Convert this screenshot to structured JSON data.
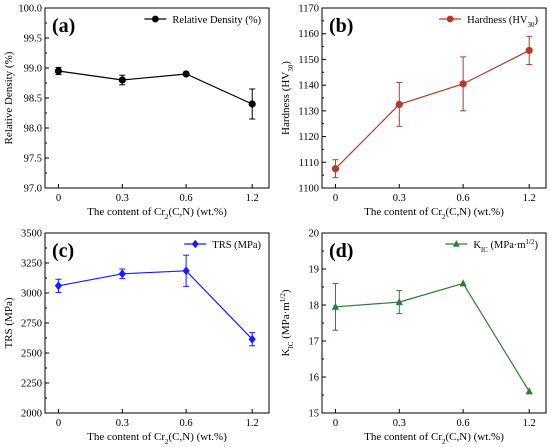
{
  "chart_data": [
    {
      "type": "line",
      "panel_label": "(a)",
      "categories": [
        "0",
        "0.3",
        "0.6",
        "1.2"
      ],
      "x": [
        0,
        0.3,
        0.6,
        1.2
      ],
      "xlabel": {
        "pre": "The content of Cr",
        "sub": "2",
        "post": "(C,N) (wt.%)"
      },
      "ylabel": {
        "pre": "Relative Density (%)",
        "sub": "",
        "post": ""
      },
      "ylim": [
        97.0,
        100.0
      ],
      "yticks": [
        "97.0",
        "97.5",
        "98.0",
        "98.5",
        "99.0",
        "99.5",
        "100.0"
      ],
      "marker": "circle",
      "color": "#000000",
      "legend_position": "top-right",
      "series": [
        {
          "name": {
            "pre": "Relative Density (%)",
            "sub": "",
            "post": ""
          },
          "values": [
            98.95,
            98.8,
            98.9,
            98.4
          ],
          "errors": [
            0.06,
            0.08,
            0.0,
            0.25
          ]
        }
      ],
      "grid": false
    },
    {
      "type": "line",
      "panel_label": "(b)",
      "categories": [
        "0",
        "0.3",
        "0.6",
        "1.2"
      ],
      "x": [
        0,
        0.3,
        0.6,
        1.2
      ],
      "xlabel": {
        "pre": "The content of Cr",
        "sub": "2",
        "post": "(C,N) (wt.%)"
      },
      "ylabel": {
        "pre": "Hardness (HV",
        "sub": "30",
        "post": ")"
      },
      "ylim": [
        1100,
        1170
      ],
      "yticks": [
        "1100",
        "1110",
        "1120",
        "1130",
        "1140",
        "1150",
        "1160",
        "1170"
      ],
      "marker": "circle",
      "color": "#b03a2e",
      "legend_position": "top-right",
      "series": [
        {
          "name": {
            "pre": "Hardness (HV",
            "sub": "30",
            "post": ")"
          },
          "values": [
            1107.5,
            1132.5,
            1140.5,
            1153.5
          ],
          "errors": [
            3.5,
            8.5,
            10.5,
            5.5
          ]
        }
      ],
      "grid": false
    },
    {
      "type": "line",
      "panel_label": "(c)",
      "categories": [
        "0",
        "0.3",
        "0.6",
        "1.2"
      ],
      "x": [
        0,
        0.3,
        0.6,
        1.2
      ],
      "xlabel": {
        "pre": "The content of Cr",
        "sub": "2",
        "post": "(C,N) (wt.%)"
      },
      "ylabel": {
        "pre": "TRS (MPa)",
        "sub": "",
        "post": ""
      },
      "ylim": [
        2000,
        3500
      ],
      "yticks": [
        "2000",
        "2250",
        "2500",
        "2750",
        "3000",
        "3250",
        "3500"
      ],
      "marker": "diamond",
      "color": "#1a1aff",
      "legend_position": "top-right",
      "series": [
        {
          "name": {
            "pre": "TRS (MPa)",
            "sub": "",
            "post": ""
          },
          "values": [
            3060,
            3160,
            3185,
            2615
          ],
          "errors": [
            55,
            40,
            130,
            55
          ]
        }
      ],
      "grid": false
    },
    {
      "type": "line",
      "panel_label": "(d)",
      "categories": [
        "0",
        "0.3",
        "0.6",
        "1.2"
      ],
      "x": [
        0,
        0.3,
        0.6,
        1.2
      ],
      "xlabel": {
        "pre": "The content of Cr",
        "sub": "2",
        "post": "(C,N) (wt.%)"
      },
      "ylabel": {
        "pre": "K",
        "sub": "IC",
        "post": " (MPa·m",
        "sup": "1/2",
        "post2": ")"
      },
      "ylim": [
        15,
        20
      ],
      "yticks": [
        "15",
        "16",
        "17",
        "18",
        "19",
        "20"
      ],
      "marker": "triangle",
      "color": "#2e7d32",
      "legend_position": "top-right",
      "series": [
        {
          "name": {
            "pre": "K",
            "sub": "IC",
            "post": " (MPa·m",
            "sup": "1/2",
            "post2": ")"
          },
          "values": [
            17.95,
            18.08,
            18.6,
            15.6
          ],
          "errors": [
            0.65,
            0.32,
            0.0,
            0.0
          ]
        }
      ],
      "grid": false
    }
  ]
}
